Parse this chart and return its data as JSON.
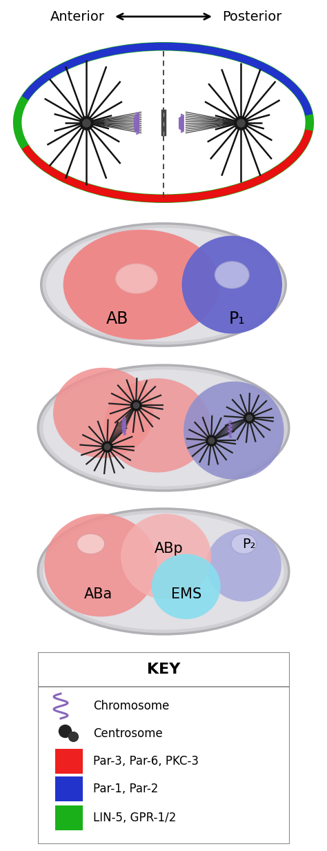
{
  "bg_color": "#ffffff",
  "title_left": "Anterior",
  "title_right": "Posterior",
  "title_fontsize": 14,
  "panel1": {
    "green": "#1ab01a",
    "red": "#e81010",
    "blue": "#2233cc",
    "white": "#ffffff",
    "centrosome": "#151515",
    "spindle": "#222222",
    "chromosome": "#8866bb",
    "astral": "#111111"
  },
  "panel2": {
    "outer": "#c8c8cc",
    "AB_fill": "#f08080",
    "P1_fill": "#6666cc",
    "nuc_AB": "#f5c0c0",
    "nuc_P1": "#c0c0e8",
    "label_AB": "AB",
    "label_P1": "P₁"
  },
  "panel3": {
    "outer": "#c8c8cc",
    "AB_fill": "#f09090",
    "P1_fill": "#9090cc",
    "centrosome": "#151515",
    "spindle": "#222222",
    "chromosome": "#8866bb"
  },
  "panel4": {
    "outer": "#c8c8cc",
    "ABa_fill": "#f09090",
    "ABp_fill": "#f5b0b0",
    "EMS_fill": "#88ddee",
    "P2_fill": "#aaaadd",
    "nuc_ABa": "#f8d0d0",
    "nuc_P2": "#ccccee",
    "label_ABa": "ABa",
    "label_ABp": "ABp",
    "label_EMS": "EMS",
    "label_P2": "P₂"
  },
  "key": {
    "title": "KEY",
    "chromosome_label": "Chromosome",
    "centrosome_label": "Centrosome",
    "par3_label": "Par-3, Par-6, PKC-3",
    "par1_label": "Par-1, Par-2",
    "lin5_label": "LIN-5, GPR-1/2",
    "par3_color": "#ee2020",
    "par1_color": "#2233cc",
    "lin5_color": "#1ab01a"
  }
}
